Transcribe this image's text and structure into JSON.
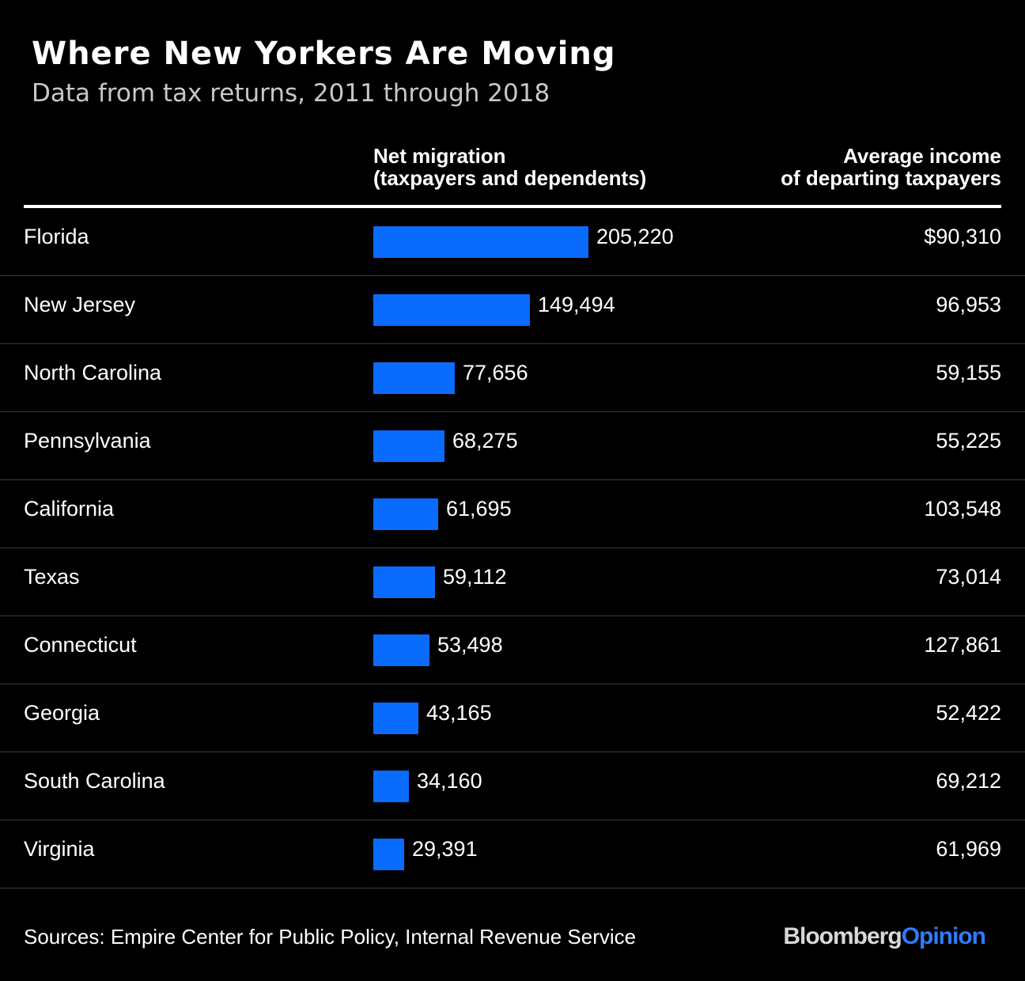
{
  "title": "Where New Yorkers Are Moving",
  "subtitle": "Data from tax returns, 2011 through 2018",
  "columns": {
    "migration": [
      "Net migration",
      "(taxpayers and dependents)"
    ],
    "income": [
      "Average income",
      "of departing taxpayers"
    ]
  },
  "source": "Sources: Empire Center for Public Policy, Internal Revenue Service",
  "logo": {
    "brand": "Bloomberg",
    "section": "Opinion"
  },
  "colors": {
    "bar": "#0a6cff",
    "background": "#000000",
    "text": "#ffffff"
  },
  "chart_data": {
    "type": "bar",
    "orientation": "horizontal",
    "categories": [
      "Florida",
      "New Jersey",
      "North Carolina",
      "Pennsylvania",
      "California",
      "Texas",
      "Connecticut",
      "Georgia",
      "South Carolina",
      "Virginia"
    ],
    "series": [
      {
        "name": "Net migration (taxpayers and dependents)",
        "values": [
          205220,
          149494,
          77656,
          68275,
          61695,
          59112,
          53498,
          43165,
          34160,
          29391
        ],
        "labels": [
          "205,220",
          "149,494",
          "77,656",
          "68,275",
          "61,695",
          "59,112",
          "53,498",
          "43,165",
          "34,160",
          "29,391"
        ]
      },
      {
        "name": "Average income of departing taxpayers",
        "values": [
          90310,
          96953,
          59155,
          55225,
          103548,
          73014,
          127861,
          52422,
          69212,
          61969
        ],
        "labels": [
          "$90,310",
          "96,953",
          "59,155",
          "55,225",
          "103,548",
          "73,014",
          "127,861",
          "52,422",
          "69,212",
          "61,969"
        ]
      }
    ],
    "grid": false,
    "legend": "none"
  }
}
